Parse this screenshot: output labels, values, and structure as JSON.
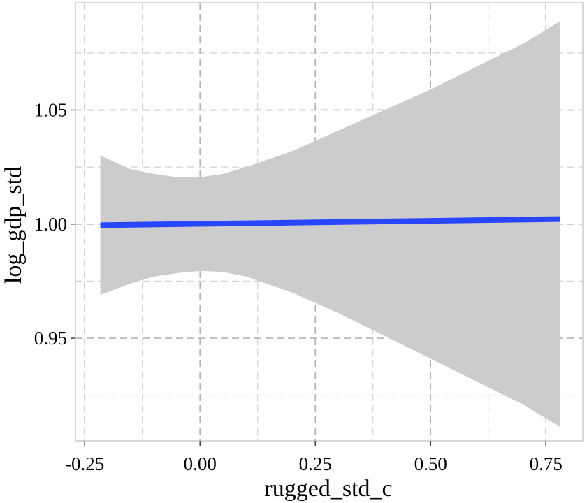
{
  "chart_data": {
    "type": "line",
    "title": "",
    "xlabel": "rugged_std_c",
    "ylabel": "log_gdp_std",
    "xlim": [
      -0.27,
      0.83
    ],
    "ylim": [
      0.905,
      1.097
    ],
    "x_ticks": [
      -0.25,
      0.0,
      0.25,
      0.5,
      0.75
    ],
    "x_tick_labels": [
      "-0.25",
      "0.00",
      "0.25",
      "0.50",
      "0.75"
    ],
    "x_minor_ticks": [
      -0.125,
      0.125,
      0.375,
      0.625
    ],
    "y_ticks": [
      0.95,
      1.0,
      1.05
    ],
    "y_tick_labels": [
      "0.95",
      "1.00",
      "1.05"
    ],
    "y_minor_ticks": [
      0.925,
      0.975,
      1.025,
      1.075
    ],
    "grid": true,
    "series": [
      {
        "name": "fit",
        "color": "#2846ff",
        "x": [
          -0.216,
          0.781
        ],
        "values": [
          0.9995,
          1.0022
        ]
      }
    ],
    "ribbon": {
      "name": "confidence band",
      "color": "#cccccc",
      "x": [
        -0.216,
        -0.15,
        -0.1,
        -0.05,
        0.0,
        0.05,
        0.1,
        0.2,
        0.3,
        0.4,
        0.5,
        0.6,
        0.7,
        0.781
      ],
      "lower": [
        0.969,
        0.974,
        0.977,
        0.9785,
        0.9795,
        0.979,
        0.977,
        0.97,
        0.961,
        0.951,
        0.941,
        0.931,
        0.921,
        0.911
      ],
      "upper": [
        1.03,
        1.024,
        1.022,
        1.0205,
        1.0205,
        1.022,
        1.025,
        1.032,
        1.041,
        1.05,
        1.059,
        1.069,
        1.079,
        1.089
      ]
    }
  }
}
